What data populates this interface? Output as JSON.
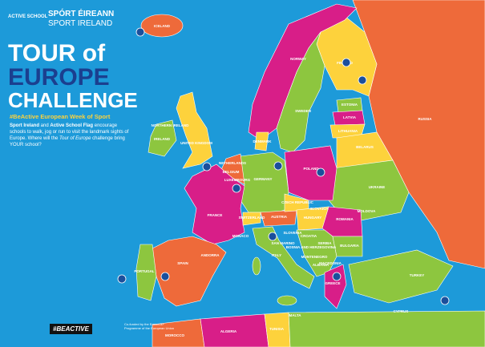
{
  "header": {
    "active_school": "ACTIVE SCHOOL",
    "sport_ireland_irish": "SPÓRT ÉIREANN",
    "sport_ireland": "SPORT IRELAND"
  },
  "title": {
    "line1": "TOUR of",
    "line2": "EUROPE",
    "line3": "CHALLENGE",
    "hashtag": "#BeActive European Week of Sport"
  },
  "intro": [
    "Sport Ireland",
    " and ",
    "Active School Flag",
    " encourage schools to walk, jog or run to visit the landmark sights of Europe. Where will the ",
    "Tour of Europe",
    " challenge bring YOUR school?"
  ],
  "countries": [
    "ICELAND",
    "NORWAY",
    "SWEDEN",
    "FINLAND",
    "RUSSIA",
    "ESTONIA",
    "LATVIA",
    "LITHUANIA",
    "BELARUS",
    "UKRAINE",
    "POLAND",
    "GERMANY",
    "DENMARK",
    "NETHERLANDS",
    "BELGIUM",
    "LUXEMBOURG",
    "UNITED KINGDOM",
    "IRELAND",
    "NORTHERN IRELAND",
    "FRANCE",
    "SWITZERLAND",
    "AUSTRIA",
    "CZECH REPUBLIC",
    "SLOVAKIA",
    "HUNGARY",
    "ROMANIA",
    "MOLDOVA",
    "SLOVENIA",
    "CROATIA",
    "BOSNIA AND HERZEGOVINA",
    "SERBIA",
    "MONTENEGRO",
    "ALBANIA",
    "MACEDONIA",
    "BULGARIA",
    "GREECE",
    "TURKEY",
    "ITALY",
    "SAN MARINO",
    "MALTA",
    "SPAIN",
    "PORTUGAL",
    "ANDORRA",
    "MONACO",
    "MOROCCO",
    "ALGERIA",
    "TUNISIA",
    "CYPRUS"
  ],
  "footer": {
    "beactive": "#BEACTIVE",
    "erasmus": "Co-funded by the Erasmus+ Programme of the European Union"
  }
}
